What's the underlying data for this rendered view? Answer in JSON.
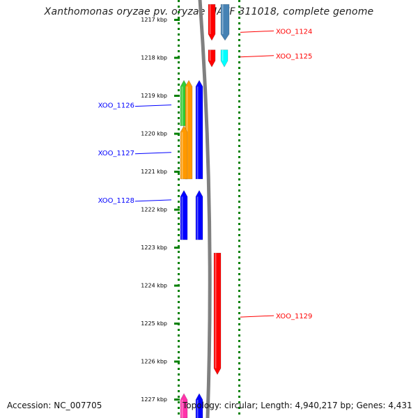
{
  "title": "Xanthomonas oryzae pv. oryzae MAFF 311018, complete genome",
  "accession": "Accession: NC_007705",
  "info": "Topology: circular; Length: 4,940,217 bp; Genes: 4,431",
  "colors": {
    "track_dots": "#008000",
    "backbone": "#808080",
    "label_reverse": "#0000ff",
    "label_forward": "#ff0000"
  },
  "ticks": [
    {
      "kbp": 1217,
      "label": "1217 kbp"
    },
    {
      "kbp": 1218,
      "label": "1218 kbp"
    },
    {
      "kbp": 1219,
      "label": "1219 kbp"
    },
    {
      "kbp": 1220,
      "label": "1220 kbp"
    },
    {
      "kbp": 1221,
      "label": "1221 kbp"
    },
    {
      "kbp": 1222,
      "label": "1222 kbp"
    },
    {
      "kbp": 1223,
      "label": "1223 kbp"
    },
    {
      "kbp": 1224,
      "label": "1224 kbp"
    },
    {
      "kbp": 1225,
      "label": "1225 kbp"
    },
    {
      "kbp": 1226,
      "label": "1226 kbp"
    },
    {
      "kbp": 1227,
      "label": "1227 kbp"
    }
  ],
  "genes": [
    {
      "id": "XOO_1124",
      "strand": "+",
      "start_kbp": 1216.6,
      "end_kbp": 1217.55,
      "color": "#ff0000",
      "lane": 0
    },
    {
      "id": "XOO_1124b",
      "strand": "+",
      "start_kbp": 1216.6,
      "end_kbp": 1217.55,
      "color": "#4682b4",
      "lane": 1
    },
    {
      "id": "XOO_1125",
      "strand": "+",
      "start_kbp": 1217.8,
      "end_kbp": 1218.25,
      "color": "#ff0000",
      "lane": 0
    },
    {
      "id": "XOO_1125b",
      "strand": "+",
      "start_kbp": 1217.8,
      "end_kbp": 1218.25,
      "color": "#00ffff",
      "lane": 1
    },
    {
      "id": "XOO_1126",
      "strand": "-",
      "start_kbp": 1218.6,
      "end_kbp": 1219.8,
      "color": "#33cc33",
      "lane": 0
    },
    {
      "id": "XOO_1126b",
      "strand": "-",
      "start_kbp": 1218.6,
      "end_kbp": 1221.2,
      "color": "#ff9900",
      "lane": 1
    },
    {
      "id": "XOO_1126c",
      "strand": "-",
      "start_kbp": 1218.6,
      "end_kbp": 1221.2,
      "color": "#0000ff",
      "lane": 2
    },
    {
      "id": "XOO_1127",
      "strand": "-",
      "start_kbp": 1219.8,
      "end_kbp": 1221.2,
      "color": "#ff9900",
      "lane": 0
    },
    {
      "id": "XOO_1128",
      "strand": "-",
      "start_kbp": 1221.5,
      "end_kbp": 1222.8,
      "color": "#0000ff",
      "lane": 0
    },
    {
      "id": "XOO_1128b",
      "strand": "-",
      "start_kbp": 1221.5,
      "end_kbp": 1222.8,
      "color": "#0000ff",
      "lane": 2
    },
    {
      "id": "XOO_1129",
      "strand": "+",
      "start_kbp": 1223.15,
      "end_kbp": 1226.35,
      "color": "#ff0000",
      "lane": 0
    },
    {
      "id": "XOO_1130",
      "strand": "-",
      "start_kbp": 1226.85,
      "end_kbp": 1227.6,
      "color": "#ff33aa",
      "lane": 0
    },
    {
      "id": "XOO_1130b",
      "strand": "-",
      "start_kbp": 1226.85,
      "end_kbp": 1227.6,
      "color": "#0000ff",
      "lane": 2
    }
  ],
  "labels": [
    {
      "text": "XOO_1124",
      "side": "right",
      "kbp": 1217.3
    },
    {
      "text": "XOO_1125",
      "side": "right",
      "kbp": 1217.95
    },
    {
      "text": "XOO_1126",
      "side": "left",
      "kbp": 1219.25
    },
    {
      "text": "XOO_1127",
      "side": "left",
      "kbp": 1220.5
    },
    {
      "text": "XOO_1128",
      "side": "left",
      "kbp": 1221.75
    },
    {
      "text": "XOO_1129",
      "side": "right",
      "kbp": 1224.8
    }
  ]
}
